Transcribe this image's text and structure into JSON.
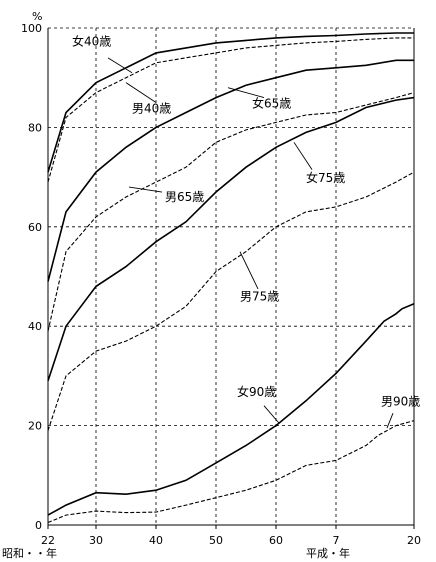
{
  "chart_data": {
    "type": "line",
    "ylabel": "%",
    "ylim": [
      0,
      100
    ],
    "yticks": [
      0,
      20,
      40,
      60,
      80,
      100
    ],
    "x_era_labels": {
      "left": "昭和・・年",
      "right": "平成・年"
    },
    "xticks": [
      {
        "year": 1947,
        "label": "22"
      },
      {
        "year": 1955,
        "label": "30"
      },
      {
        "year": 1965,
        "label": "40"
      },
      {
        "year": 1975,
        "label": "50"
      },
      {
        "year": 1985,
        "label": "60"
      },
      {
        "year": 1995,
        "label": "7"
      },
      {
        "year": 2008,
        "label": "20"
      }
    ],
    "grid": true,
    "line_color": "#000000",
    "series": [
      {
        "name": "女40歳",
        "style": "solid",
        "label_pos": [
          1951,
          96.5
        ],
        "leader": [
          1957,
          94,
          1961,
          91
        ],
        "points": [
          [
            1947,
            71
          ],
          [
            1950,
            83
          ],
          [
            1955,
            89
          ],
          [
            1960,
            92
          ],
          [
            1965,
            95
          ],
          [
            1970,
            96
          ],
          [
            1975,
            97
          ],
          [
            1980,
            97.5
          ],
          [
            1985,
            98
          ],
          [
            1990,
            98.3
          ],
          [
            1995,
            98.5
          ],
          [
            2000,
            98.8
          ],
          [
            2005,
            99
          ],
          [
            2008,
            99
          ]
        ]
      },
      {
        "name": "男40歳",
        "style": "dashed",
        "label_pos": [
          1961,
          83
        ],
        "leader": [
          1965,
          85,
          1960,
          89
        ],
        "points": [
          [
            1947,
            69
          ],
          [
            1950,
            82
          ],
          [
            1955,
            87
          ],
          [
            1960,
            90
          ],
          [
            1965,
            93
          ],
          [
            1970,
            94
          ],
          [
            1975,
            95
          ],
          [
            1980,
            96
          ],
          [
            1985,
            96.5
          ],
          [
            1990,
            97
          ],
          [
            1995,
            97.3
          ],
          [
            2000,
            97.7
          ],
          [
            2005,
            98
          ],
          [
            2008,
            98
          ]
        ]
      },
      {
        "name": "女65歳",
        "style": "solid",
        "label_pos": [
          1981,
          84
        ],
        "leader": [
          1983,
          86,
          1977,
          88
        ],
        "points": [
          [
            1947,
            49
          ],
          [
            1950,
            63
          ],
          [
            1955,
            71
          ],
          [
            1960,
            76
          ],
          [
            1965,
            80
          ],
          [
            1970,
            83
          ],
          [
            1975,
            86
          ],
          [
            1980,
            88.5
          ],
          [
            1985,
            90
          ],
          [
            1990,
            91.5
          ],
          [
            1995,
            92
          ],
          [
            2000,
            92.5
          ],
          [
            2005,
            93.5
          ],
          [
            2008,
            93.5
          ]
        ]
      },
      {
        "name": "男65歳",
        "style": "dashed",
        "label_pos": [
          1966.5,
          65.2
        ],
        "leader": [
          1966,
          67,
          1960.5,
          68
        ],
        "points": [
          [
            1947,
            39
          ],
          [
            1950,
            55
          ],
          [
            1955,
            62
          ],
          [
            1960,
            66
          ],
          [
            1965,
            69
          ],
          [
            1970,
            72
          ],
          [
            1975,
            77
          ],
          [
            1980,
            79.5
          ],
          [
            1985,
            81
          ],
          [
            1990,
            82.5
          ],
          [
            1995,
            83
          ],
          [
            2000,
            84.5
          ],
          [
            2005,
            86
          ],
          [
            2008,
            87
          ]
        ]
      },
      {
        "name": "女75歳",
        "style": "solid",
        "label_pos": [
          1990,
          69
        ],
        "leader": [
          1991,
          71.5,
          1988,
          77
        ],
        "points": [
          [
            1947,
            29
          ],
          [
            1950,
            40
          ],
          [
            1955,
            48
          ],
          [
            1960,
            52
          ],
          [
            1965,
            57
          ],
          [
            1970,
            61
          ],
          [
            1975,
            67
          ],
          [
            1980,
            72
          ],
          [
            1985,
            76
          ],
          [
            1990,
            79
          ],
          [
            1995,
            81
          ],
          [
            2000,
            84
          ],
          [
            2005,
            85.5
          ],
          [
            2008,
            86
          ]
        ]
      },
      {
        "name": "男75歳",
        "style": "dashed",
        "label_pos": [
          1979,
          45.2
        ],
        "leader": [
          1982,
          47.5,
          1979,
          55
        ],
        "points": [
          [
            1947,
            19
          ],
          [
            1950,
            30
          ],
          [
            1955,
            35
          ],
          [
            1960,
            37
          ],
          [
            1965,
            40
          ],
          [
            1970,
            44
          ],
          [
            1975,
            51
          ],
          [
            1980,
            55
          ],
          [
            1985,
            60
          ],
          [
            1990,
            63
          ],
          [
            1995,
            64
          ],
          [
            2000,
            66
          ],
          [
            2005,
            69
          ],
          [
            2008,
            71
          ]
        ]
      },
      {
        "name": "女90歳",
        "style": "solid",
        "label_pos": [
          1978.5,
          26
        ],
        "leader": [
          1983,
          24,
          1985.5,
          20.5
        ],
        "points": [
          [
            1947,
            2
          ],
          [
            1950,
            4
          ],
          [
            1955,
            6.5
          ],
          [
            1960,
            6.2
          ],
          [
            1965,
            7
          ],
          [
            1970,
            9
          ],
          [
            1975,
            12.5
          ],
          [
            1980,
            16
          ],
          [
            1985,
            20
          ],
          [
            1990,
            25
          ],
          [
            1995,
            30.5
          ],
          [
            2000,
            37
          ],
          [
            2003,
            41
          ],
          [
            2005,
            42.5
          ],
          [
            2006,
            43.5
          ],
          [
            2008,
            44.5
          ]
        ]
      },
      {
        "name": "男90歳",
        "style": "dashed",
        "label_pos": [
          2002.5,
          24
        ],
        "leader": [
          2004.5,
          22.5,
          2003.5,
          19.5
        ],
        "points": [
          [
            1947,
            0.5
          ],
          [
            1950,
            2
          ],
          [
            1955,
            2.8
          ],
          [
            1960,
            2.5
          ],
          [
            1965,
            2.6
          ],
          [
            1970,
            4
          ],
          [
            1975,
            5.5
          ],
          [
            1980,
            7
          ],
          [
            1985,
            9
          ],
          [
            1990,
            12
          ],
          [
            1995,
            13
          ],
          [
            2000,
            16
          ],
          [
            2002,
            18
          ],
          [
            2005,
            20
          ],
          [
            2008,
            21
          ]
        ]
      }
    ]
  }
}
